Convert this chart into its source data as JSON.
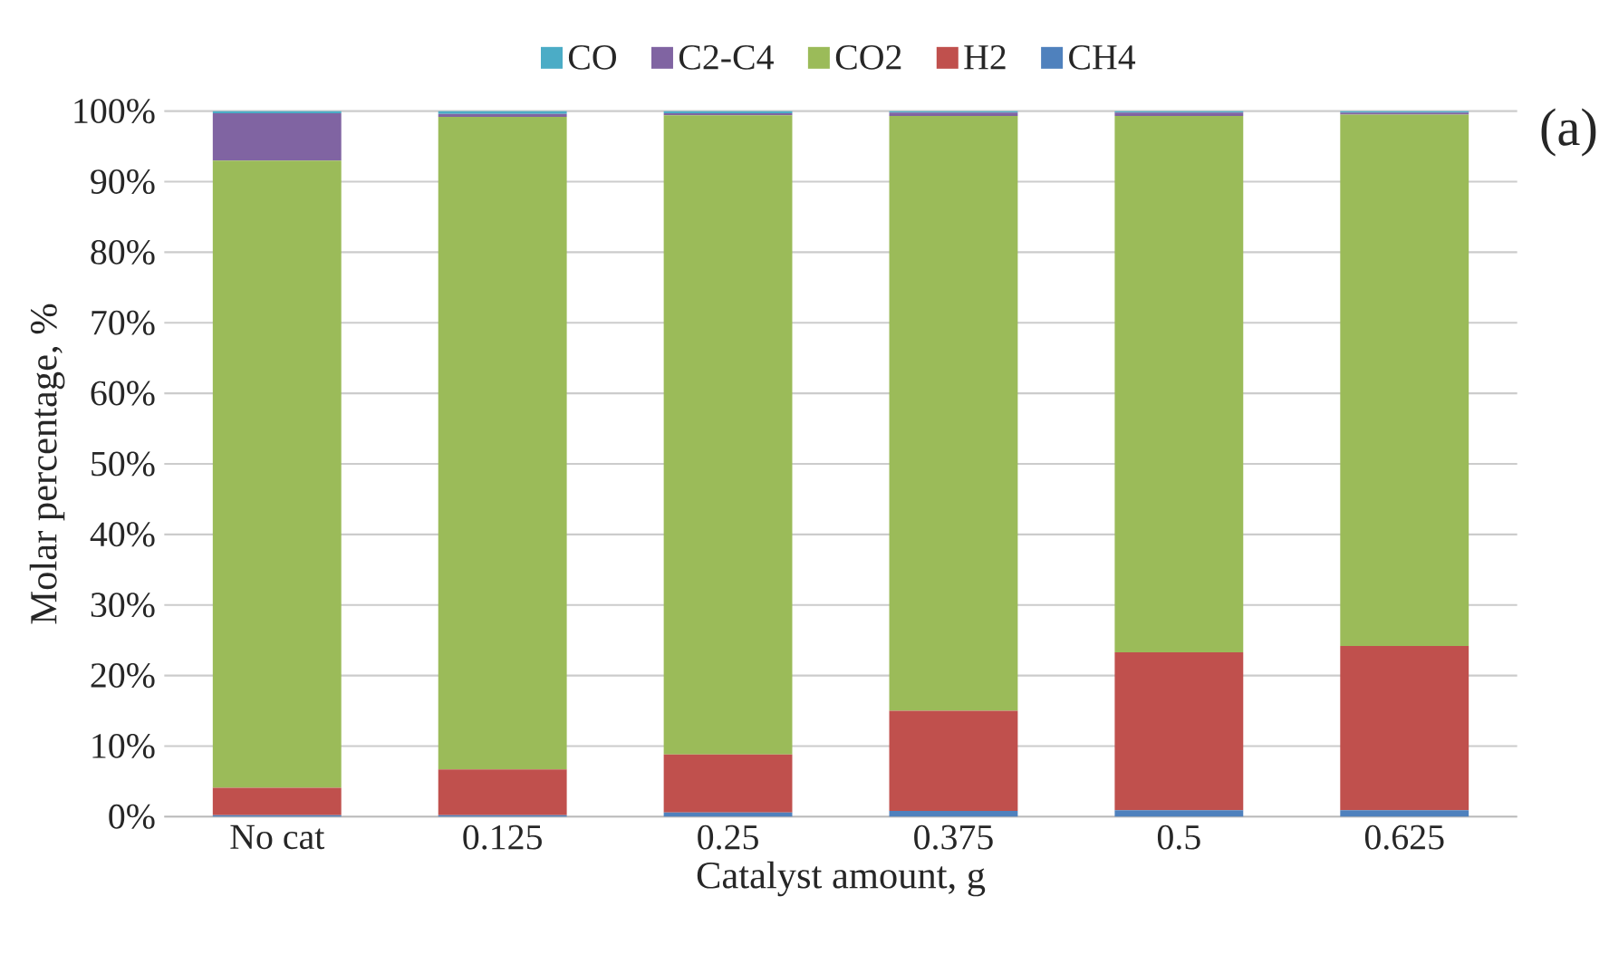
{
  "chart_data": {
    "type": "bar",
    "stacked": true,
    "xlabel": "Catalyst amount, g",
    "ylabel": "Molar percentage, %",
    "categories": [
      "No cat",
      "0.125",
      "0.25",
      "0.375",
      "0.5",
      "0.625"
    ],
    "series": [
      {
        "name": "CH4",
        "color": "#4f81bd",
        "values": [
          0.2,
          0.2,
          0.6,
          0.8,
          0.9,
          0.9
        ]
      },
      {
        "name": "H2",
        "color": "#c0504d",
        "values": [
          3.9,
          6.5,
          8.2,
          14.2,
          22.4,
          23.3
        ]
      },
      {
        "name": "CO2",
        "color": "#9bbb59",
        "values": [
          88.9,
          92.5,
          90.6,
          84.3,
          76.0,
          75.3
        ]
      },
      {
        "name": "C2-C4",
        "color": "#8064a2",
        "values": [
          6.7,
          0.4,
          0.3,
          0.5,
          0.5,
          0.3
        ]
      },
      {
        "name": "CO",
        "color": "#4bacc6",
        "values": [
          0.3,
          0.4,
          0.3,
          0.2,
          0.2,
          0.2
        ]
      }
    ],
    "ylim": [
      0,
      100
    ],
    "yticks": [
      {
        "value": 0,
        "label": "0%"
      },
      {
        "value": 10,
        "label": "10%"
      },
      {
        "value": 20,
        "label": "20%"
      },
      {
        "value": 30,
        "label": "30%"
      },
      {
        "value": 40,
        "label": "40%"
      },
      {
        "value": 50,
        "label": "50%"
      },
      {
        "value": 60,
        "label": "60%"
      },
      {
        "value": 70,
        "label": "70%"
      },
      {
        "value": 80,
        "label": "80%"
      },
      {
        "value": 90,
        "label": "90%"
      },
      {
        "value": 100,
        "label": "100%"
      }
    ],
    "grid": "y",
    "legend": "top",
    "annotations": [
      "(a)"
    ]
  }
}
